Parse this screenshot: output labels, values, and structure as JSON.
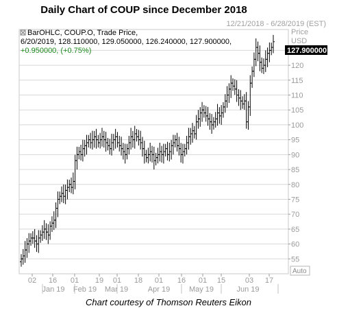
{
  "title": "Daily Chart of COUP since December 2018",
  "date_range": "12/21/2018 - 6/28/2019 (EST)",
  "caption": "Chart courtesy of Thomson Reuters Eikon",
  "price_label": "Price",
  "currency": "USD",
  "auto_button": "Auto",
  "last_price_badge": "127.900000",
  "legend": {
    "line1": "BarOHLC, COUP.O, Trade Price,",
    "line2": "6/20/2019, 128.110000, 129.050000, 126.240000, 127.900000,",
    "line3": "+0.950000, (+0.75%)"
  },
  "colors": {
    "bars": "#000000",
    "change_positive": "#1a8a1a",
    "grid": "#d8d8d8",
    "badge_bg": "#000000"
  },
  "chart_data": {
    "type": "ohlc",
    "symbol": "COUP.O",
    "ylim": [
      50,
      132
    ],
    "y_ticks": [
      55,
      60,
      65,
      70,
      75,
      80,
      85,
      90,
      95,
      100,
      105,
      110,
      115,
      120,
      125
    ],
    "x_tick_labels": [
      "02",
      "16",
      "01",
      "19",
      "01",
      "18",
      "01",
      "16",
      "01",
      "15",
      "03",
      "17"
    ],
    "month_labels": [
      "Jan 19",
      "Feb 19",
      "Mar 19",
      "Apr 19",
      "May 19",
      "Jun 19"
    ],
    "last_bar": {
      "date": "6/20/2019",
      "open": 128.11,
      "high": 129.05,
      "low": 126.24,
      "close": 127.9,
      "change": 0.95,
      "change_pct": 0.75
    },
    "closes": [
      55,
      56,
      58,
      60,
      61,
      62,
      62,
      61,
      60,
      62,
      63,
      64,
      65,
      64,
      63,
      66,
      67,
      68,
      72,
      75,
      76,
      77,
      76,
      78,
      79,
      80,
      79,
      81,
      88,
      90,
      91,
      90,
      92,
      93,
      94,
      95,
      94,
      95,
      96,
      95,
      94,
      95,
      96,
      95,
      94,
      93,
      92,
      94,
      95,
      96,
      94,
      93,
      92,
      91,
      90,
      92,
      94,
      96,
      95,
      97,
      96,
      95,
      94,
      92,
      90,
      89,
      90,
      91,
      90,
      88,
      89,
      90,
      91,
      90,
      91,
      92,
      90,
      91,
      93,
      94,
      95,
      93,
      92,
      90,
      91,
      92,
      94,
      96,
      97,
      98,
      97,
      101,
      102,
      104,
      105,
      104,
      103,
      102,
      101,
      100,
      101,
      102,
      104,
      103,
      104,
      106,
      108,
      110,
      112,
      114,
      113,
      112,
      110,
      109,
      108,
      107,
      108,
      101,
      106,
      114,
      118,
      122,
      126,
      124,
      121,
      119,
      120,
      122,
      124,
      125,
      126,
      127.9
    ]
  }
}
